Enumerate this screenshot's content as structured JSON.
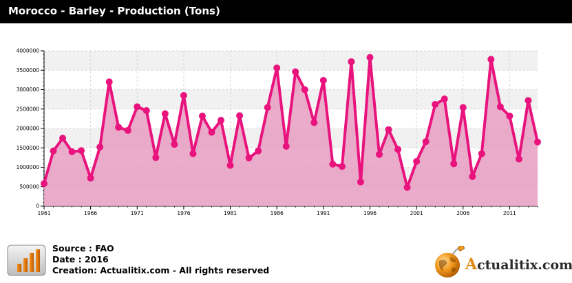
{
  "header": {
    "title": "Morocco - Barley - Production (Tons)"
  },
  "footer": {
    "source": "Source : FAO",
    "date": "Date : 2016",
    "creation": "Creation: Actualitix.com - All rights reserved",
    "brand_first_letter": "A",
    "brand_rest": "ctualitix.com"
  },
  "colors": {
    "line": "#e8137d",
    "fill": "#e89cc2",
    "title_bar": "#000000",
    "brand_orange": "#e08a14"
  },
  "icons": {
    "source_icon": "bar-chart-icon",
    "brand_icon": "globe-icon"
  },
  "chart_data": {
    "type": "area",
    "title": "",
    "xlabel": "",
    "ylabel": "",
    "xlim": [
      1961,
      2014
    ],
    "ylim": [
      0,
      4000000
    ],
    "y_ticks": [
      0,
      500000,
      1000000,
      1500000,
      2000000,
      2500000,
      3000000,
      3500000,
      4000000
    ],
    "y_tick_labels": [
      "0",
      "500000",
      "1000000",
      "1500000",
      "2000000",
      "2500000",
      "3000000",
      "3500000",
      "4000000"
    ],
    "x_ticks": [
      1961,
      1966,
      1971,
      1976,
      1981,
      1986,
      1991,
      1996,
      2001,
      2006,
      2011
    ],
    "x_tick_labels": [
      "1961",
      "1966",
      "1971",
      "1976",
      "1981",
      "1986",
      "1991",
      "1996",
      "2001",
      "2006",
      "2011"
    ],
    "grid": true,
    "series": [
      {
        "x": [
          1961,
          1962,
          1963,
          1964,
          1965,
          1966,
          1967,
          1968,
          1969,
          1970,
          1971,
          1972,
          1973,
          1974,
          1975,
          1976,
          1977,
          1978,
          1979,
          1980,
          1981,
          1982,
          1983,
          1984,
          1985,
          1986,
          1987,
          1988,
          1989,
          1990,
          1991,
          1992,
          1993,
          1994,
          1995,
          1996,
          1997,
          1998,
          1999,
          2000,
          2001,
          2002,
          2003,
          2004,
          2005,
          2006,
          2007,
          2008,
          2009,
          2010,
          2011,
          2012,
          2013,
          2014
        ],
        "values": [
          580000,
          1420000,
          1750000,
          1400000,
          1430000,
          720000,
          1520000,
          3200000,
          2030000,
          1950000,
          2560000,
          2460000,
          1250000,
          2380000,
          1590000,
          2850000,
          1350000,
          2320000,
          1900000,
          2210000,
          1050000,
          2330000,
          1240000,
          1420000,
          2540000,
          3560000,
          1540000,
          3460000,
          3000000,
          2150000,
          3240000,
          1080000,
          1020000,
          3720000,
          620000,
          3830000,
          1330000,
          1970000,
          1460000,
          480000,
          1150000,
          1660000,
          2620000,
          2760000,
          1090000,
          2540000,
          760000,
          1350000,
          3780000,
          2560000,
          2320000,
          1210000,
          2720000,
          1650000
        ]
      }
    ]
  }
}
